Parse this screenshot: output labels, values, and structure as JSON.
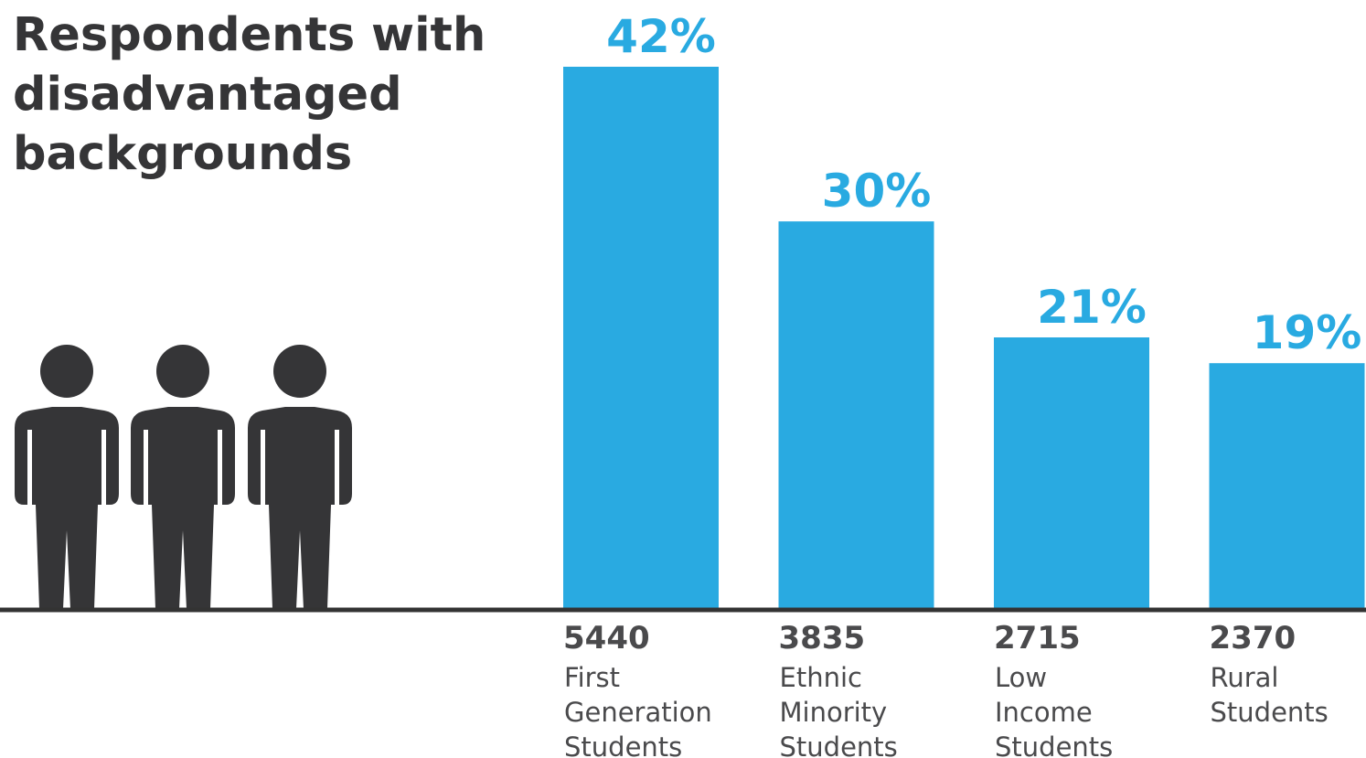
{
  "colors": {
    "bar": "#29aae1",
    "percent_label": "#29aae1",
    "text": "#4a4a4c",
    "title": "#353537",
    "baseline": "#333333",
    "people_icon": "#353537"
  },
  "icons": [
    "person-icon",
    "person-icon",
    "person-icon"
  ],
  "chart_data": {
    "type": "bar",
    "title_lines": [
      "Respondents with",
      "disadvantaged",
      "backgrounds"
    ],
    "categories": [
      [
        "First",
        "Generation",
        "Students"
      ],
      [
        "Ethnic",
        "Minority",
        "Students"
      ],
      [
        "Low",
        "Income",
        "Students"
      ],
      [
        "Rural",
        "Students"
      ]
    ],
    "values": [
      42,
      30,
      21,
      19
    ],
    "value_labels": [
      "42%",
      "30%",
      "21%",
      "19%"
    ],
    "counts": [
      "5440",
      "3835",
      "2715",
      "2370"
    ],
    "ylim": [
      0,
      42
    ],
    "grid": false,
    "legend": "none"
  }
}
